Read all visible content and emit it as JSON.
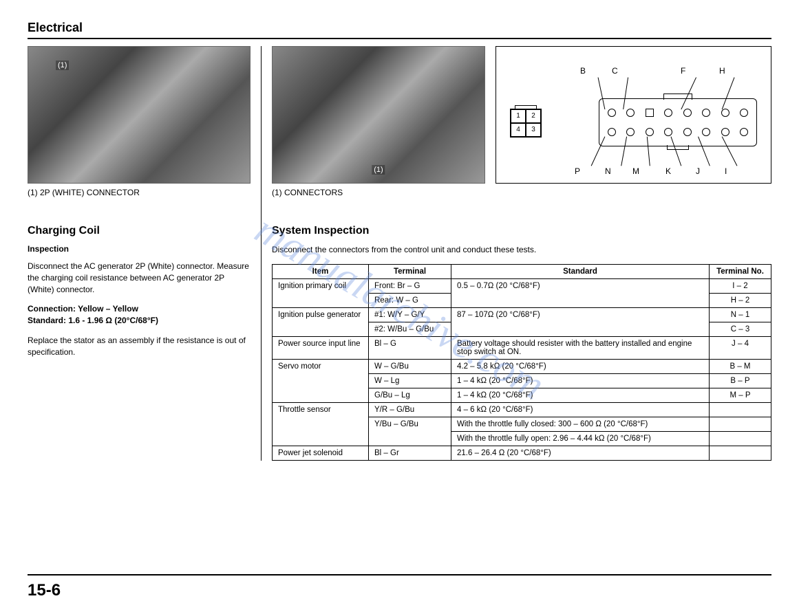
{
  "header": {
    "title": "Electrical"
  },
  "watermark": "manualarchive.com",
  "left": {
    "photoMark": "(1)",
    "caption": "(1) 2P (WHITE) CONNECTOR",
    "heading": "Charging Coil",
    "subheading": "Inspection",
    "p1": "Disconnect the AC generator 2P (White) connector. Measure the charging coil resistance between AC generator 2P (White) connector.",
    "spec1": "Connection: Yellow – Yellow",
    "spec2": "Standard: 1.6 - 1.96 Ω (20°C/68°F)",
    "p2": "Replace the stator as an assembly if the resistance is out of specification."
  },
  "right": {
    "photoMark": "(1)",
    "caption": "(1) CONNECTORS",
    "heading": "System Inspection",
    "intro": "Disconnect the connectors from the control unit and conduct these tests.",
    "diagram": {
      "smallPins": [
        "1",
        "2",
        "4",
        "3"
      ],
      "topLabels": [
        "B",
        "C",
        "F",
        "H"
      ],
      "botLabels": [
        "P",
        "N",
        "M",
        "K",
        "J",
        "I"
      ]
    },
    "table": {
      "headers": [
        "Item",
        "Terminal",
        "Standard",
        "Terminal No."
      ],
      "rows": [
        {
          "item": "Ignition primary coil",
          "itemRowspan": 2,
          "terminal": "Front: Br – G",
          "standard": "0.5 – 0.7Ω (20 °C/68°F)",
          "standardRowspan": 2,
          "tno": "I – 2"
        },
        {
          "terminal": "Rear: W – G",
          "tno": "H – 2"
        },
        {
          "item": "Ignition pulse generator",
          "itemRowspan": 2,
          "terminal": "#1: W/Y – G/Y",
          "standard": "87 – 107Ω (20 °C/68°F)",
          "standardRowspan": 2,
          "tno": "N – 1"
        },
        {
          "terminal": "#2: W/Bu – G/Bu",
          "tno": "C – 3"
        },
        {
          "item": "Power source input line",
          "terminal": "Bl – G",
          "standard": "Battery voltage should resister with the battery installed and engine stop switch at ON.",
          "tno": "J – 4"
        },
        {
          "item": "Servo motor",
          "itemRowspan": 3,
          "terminal": "W – G/Bu",
          "standard": "4.2 – 5.8 kΩ (20 °C/68°F)",
          "tno": "B – M"
        },
        {
          "terminal": "W – Lg",
          "standard": "1 – 4 kΩ (20 °C/68°F)",
          "tno": "B – P"
        },
        {
          "terminal": "G/Bu – Lg",
          "standard": "1 – 4 kΩ (20 °C/68°F)",
          "tno": "M – P"
        },
        {
          "item": "Throttle sensor",
          "itemRowspan": 3,
          "terminal": "Y/R – G/Bu",
          "standard": "4 – 6 kΩ (20 °C/68°F)",
          "tno": ""
        },
        {
          "terminal": "Y/Bu – G/Bu",
          "terminalRowspan": 2,
          "standard": "With the throttle fully closed: 300 – 600 Ω (20 °C/68°F)",
          "tno": ""
        },
        {
          "standard": "With the throttle fully open: 2.96 – 4.44 kΩ (20 °C/68°F)",
          "tno": ""
        },
        {
          "item": "Power jet solenoid",
          "terminal": "Bl – Gr",
          "standard": "21.6 – 26.4 Ω (20 °C/68°F)",
          "tno": ""
        }
      ]
    }
  },
  "pageNumber": "15-6"
}
